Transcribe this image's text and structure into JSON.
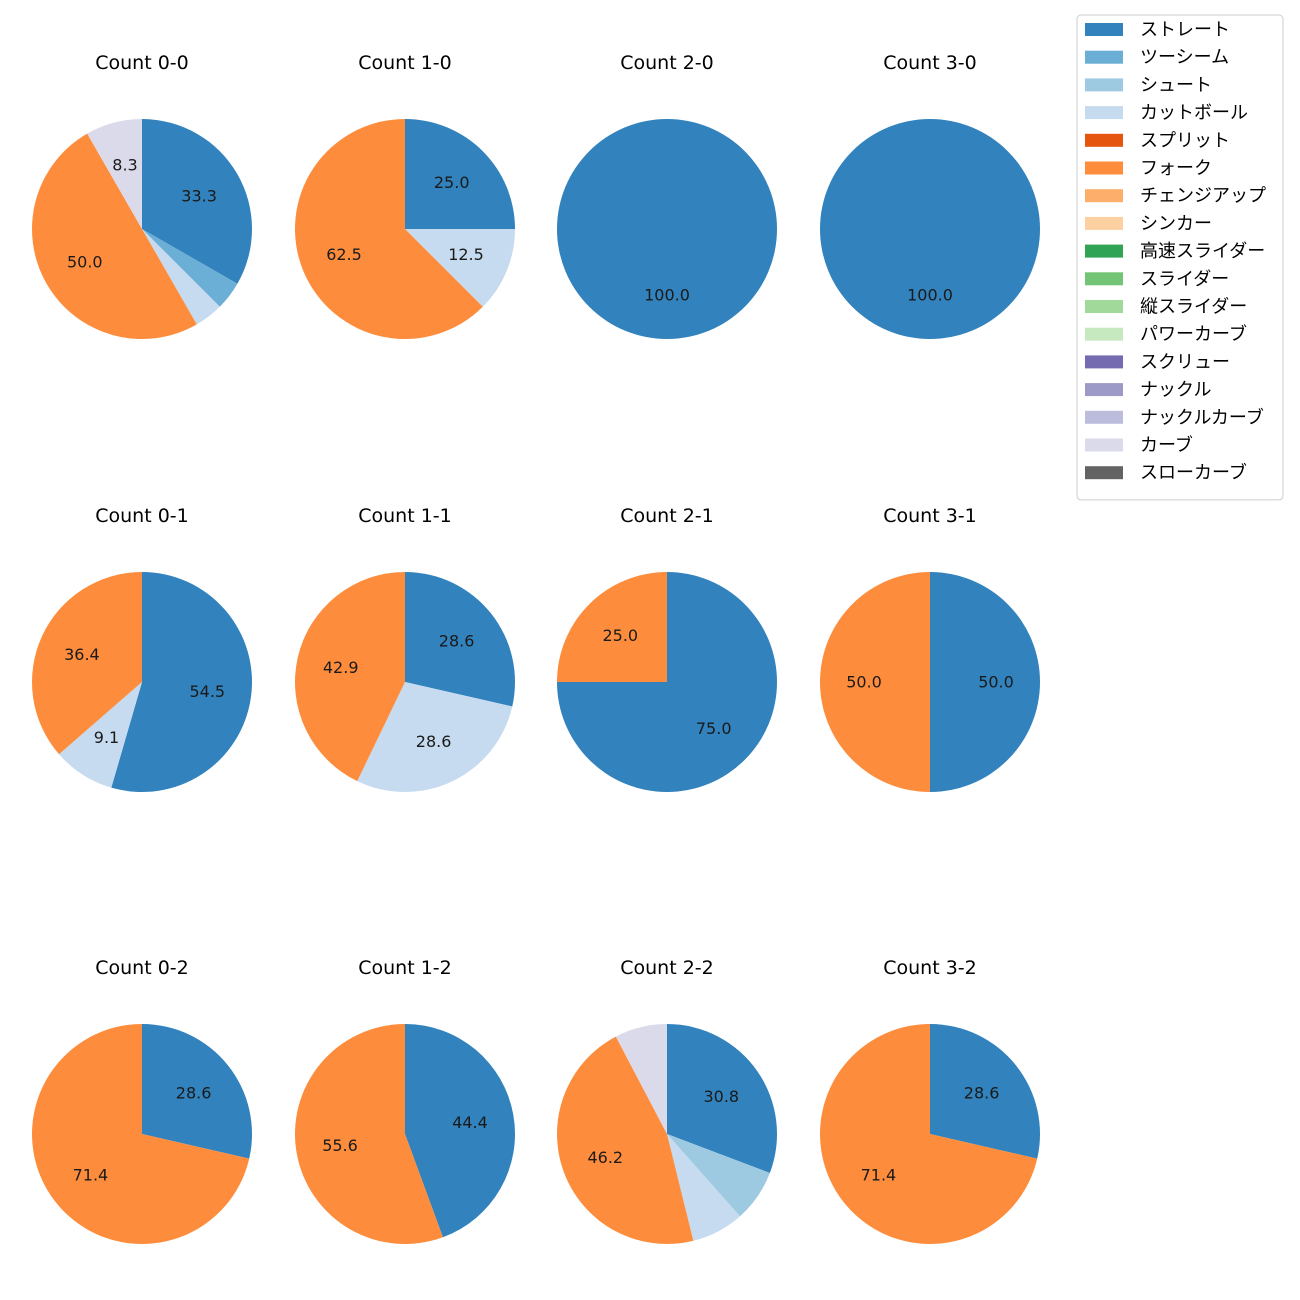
{
  "chart_data": {
    "type": "pie",
    "legend_position": "top-right",
    "label_format": "percent, one decimal",
    "start_angle": "12 o'clock, clockwise",
    "categories": [
      {
        "name": "ストレート",
        "color": "#3182bd"
      },
      {
        "name": "ツーシーム",
        "color": "#6baed6"
      },
      {
        "name": "シュート",
        "color": "#9ecae1"
      },
      {
        "name": "カットボール",
        "color": "#c6dbef"
      },
      {
        "name": "スプリット",
        "color": "#e6550d"
      },
      {
        "name": "フォーク",
        "color": "#fd8d3c"
      },
      {
        "name": "チェンジアップ",
        "color": "#fdae6b"
      },
      {
        "name": "シンカー",
        "color": "#fdd0a2"
      },
      {
        "name": "高速スライダー",
        "color": "#31a354"
      },
      {
        "name": "スライダー",
        "color": "#74c476"
      },
      {
        "name": "縦スライダー",
        "color": "#a1d99b"
      },
      {
        "name": "パワーカーブ",
        "color": "#c7e9c0"
      },
      {
        "name": "スクリュー",
        "color": "#756bb1"
      },
      {
        "name": "ナックル",
        "color": "#9e9ac8"
      },
      {
        "name": "ナックルカーブ",
        "color": "#bcbddc"
      },
      {
        "name": "カーブ",
        "color": "#dadaeb"
      },
      {
        "name": "スローカーブ",
        "color": "#636363"
      }
    ],
    "charts": [
      {
        "title": "Count 0-0",
        "slices": [
          {
            "category": "ストレート",
            "value": 33.3,
            "label": "33.3"
          },
          {
            "category": "ツーシーム",
            "value": 4.2,
            "label": ""
          },
          {
            "category": "カットボール",
            "value": 4.2,
            "label": ""
          },
          {
            "category": "フォーク",
            "value": 50.0,
            "label": "50.0"
          },
          {
            "category": "カーブ",
            "value": 8.3,
            "label": "8.3"
          }
        ]
      },
      {
        "title": "Count 1-0",
        "slices": [
          {
            "category": "ストレート",
            "value": 25.0,
            "label": "25.0"
          },
          {
            "category": "カットボール",
            "value": 12.5,
            "label": "12.5"
          },
          {
            "category": "フォーク",
            "value": 62.5,
            "label": "62.5"
          }
        ]
      },
      {
        "title": "Count 2-0",
        "slices": [
          {
            "category": "ストレート",
            "value": 100.0,
            "label": "100.0"
          }
        ]
      },
      {
        "title": "Count 3-0",
        "slices": [
          {
            "category": "ストレート",
            "value": 100.0,
            "label": "100.0"
          }
        ]
      },
      {
        "title": "Count 0-1",
        "slices": [
          {
            "category": "ストレート",
            "value": 54.5,
            "label": "54.5"
          },
          {
            "category": "カットボール",
            "value": 9.1,
            "label": "9.1"
          },
          {
            "category": "フォーク",
            "value": 36.4,
            "label": "36.4"
          }
        ]
      },
      {
        "title": "Count 1-1",
        "slices": [
          {
            "category": "ストレート",
            "value": 28.6,
            "label": "28.6"
          },
          {
            "category": "カットボール",
            "value": 28.6,
            "label": "28.6"
          },
          {
            "category": "フォーク",
            "value": 42.9,
            "label": "42.9"
          }
        ]
      },
      {
        "title": "Count 2-1",
        "slices": [
          {
            "category": "ストレート",
            "value": 75.0,
            "label": "75.0"
          },
          {
            "category": "フォーク",
            "value": 25.0,
            "label": "25.0"
          }
        ]
      },
      {
        "title": "Count 3-1",
        "slices": [
          {
            "category": "ストレート",
            "value": 50.0,
            "label": "50.0"
          },
          {
            "category": "フォーク",
            "value": 50.0,
            "label": "50.0"
          }
        ]
      },
      {
        "title": "Count 0-2",
        "slices": [
          {
            "category": "ストレート",
            "value": 28.6,
            "label": "28.6"
          },
          {
            "category": "フォーク",
            "value": 71.4,
            "label": "71.4"
          }
        ]
      },
      {
        "title": "Count 1-2",
        "slices": [
          {
            "category": "ストレート",
            "value": 44.4,
            "label": "44.4"
          },
          {
            "category": "フォーク",
            "value": 55.6,
            "label": "55.6"
          }
        ]
      },
      {
        "title": "Count 2-2",
        "slices": [
          {
            "category": "ストレート",
            "value": 30.8,
            "label": "30.8"
          },
          {
            "category": "シュート",
            "value": 7.7,
            "label": ""
          },
          {
            "category": "カットボール",
            "value": 7.7,
            "label": ""
          },
          {
            "category": "フォーク",
            "value": 46.2,
            "label": "46.2"
          },
          {
            "category": "カーブ",
            "value": 7.7,
            "label": ""
          }
        ]
      },
      {
        "title": "Count 3-2",
        "slices": [
          {
            "category": "ストレート",
            "value": 28.6,
            "label": "28.6"
          },
          {
            "category": "フォーク",
            "value": 71.4,
            "label": "71.4"
          }
        ]
      }
    ]
  }
}
